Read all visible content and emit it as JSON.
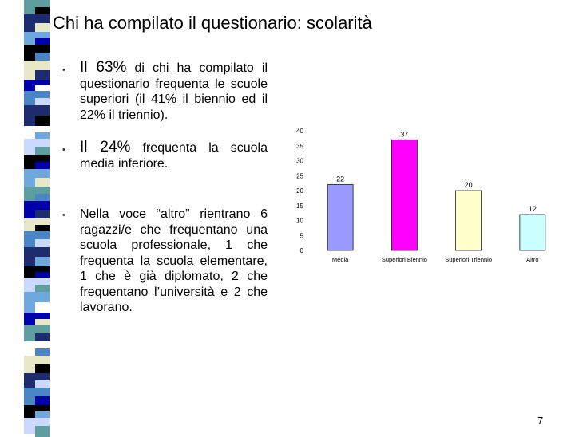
{
  "slide": {
    "title": "Chi ha compilato il questionario: scolarità",
    "page_number": "7"
  },
  "bullets": [
    {
      "marker": "•",
      "lead": "Il 63%",
      "rest": " di chi ha compilato il questionario frequenta le scuole superiori (il 41% il biennio ed il 22% il triennio)."
    },
    {
      "marker": "•",
      "lead": "Il 24%",
      "rest": " frequenta la scuola media inferiore."
    },
    {
      "marker": "•",
      "lead": "",
      "rest": "Nella voce “altro” rientrano 6 ragazzi/e che frequentano una scuola professionale, 1 che frequenta la scuola elementare, 1 che è già diplomato, 2 che frequentano l’università e 2 che lavorano."
    }
  ],
  "chart_data": {
    "type": "bar",
    "categories": [
      "Media",
      "Superiori Biennio",
      "Superiori Triennio",
      "Altro"
    ],
    "values": [
      22,
      37,
      20,
      12
    ],
    "colors": [
      "#9999ff",
      "#ff00ff",
      "#ffffcc",
      "#ccffff"
    ],
    "ylim": [
      0,
      40
    ],
    "yticks": [
      "0",
      "5",
      "10",
      "15",
      "20",
      "25",
      "30",
      "35",
      "40"
    ],
    "data_labels": [
      "22",
      "37",
      "20",
      "12"
    ],
    "title": "",
    "xlabel": "",
    "ylabel": "",
    "grid": false,
    "legend": "none"
  },
  "theme": {
    "stripe_colors": [
      "#5f9ea0",
      "#1c2c6e",
      "#0000aa",
      "#000000",
      "#ffffff",
      "#6fa8dc",
      "#4a86c5",
      "#ccd9ff",
      "#e8e8c8"
    ]
  }
}
